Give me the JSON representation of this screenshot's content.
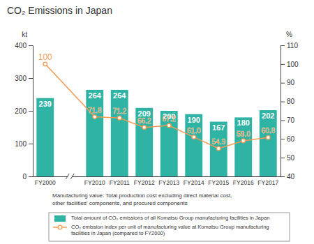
{
  "chart_data": {
    "type": "bar",
    "title": "CO₂ Emissions in Japan",
    "y_label": "kt",
    "y2_label": "%",
    "categories": [
      "FY2000",
      "FY2010",
      "FY2011",
      "FY2012",
      "FY2013",
      "FY2014",
      "FY2015",
      "FY2016",
      "FY2017"
    ],
    "ylim": [
      0,
      400
    ],
    "yticks": [
      0,
      100,
      200,
      300,
      400
    ],
    "y2lim": [
      40,
      110
    ],
    "y2ticks": [
      40,
      50,
      60,
      70,
      80,
      90,
      100,
      110
    ],
    "grid": false,
    "legend": "bottom",
    "data_labels": true,
    "annotations": [
      "Manufacturing value: Total production cost excluding direct material cost,",
      "other facilities' components, and procured components"
    ],
    "series": [
      {
        "name": "Total amount of CO₂ emissions of all Komatsu Group manufacturing facilities in Japan",
        "type": "bar",
        "color": "#2fb3a4",
        "values": [
          239,
          264,
          264,
          209,
          200,
          190,
          167,
          180,
          202
        ]
      },
      {
        "name": "CO₂ emission index per unit of manufacturing value at Komatsu Group manufacturing facilities in Japan (compared to FY2000)",
        "type": "line",
        "axis": "y2",
        "color": "#f39a53",
        "marker": "circle",
        "values": [
          100,
          71.8,
          71.2,
          66.2,
          67.2,
          61.0,
          54.9,
          59.0,
          60.8
        ],
        "value_labels": [
          "100",
          "71.8",
          "71.2",
          "66.2",
          "67.2",
          "61.0",
          "54.9",
          "59.0",
          "60.8"
        ]
      }
    ]
  }
}
